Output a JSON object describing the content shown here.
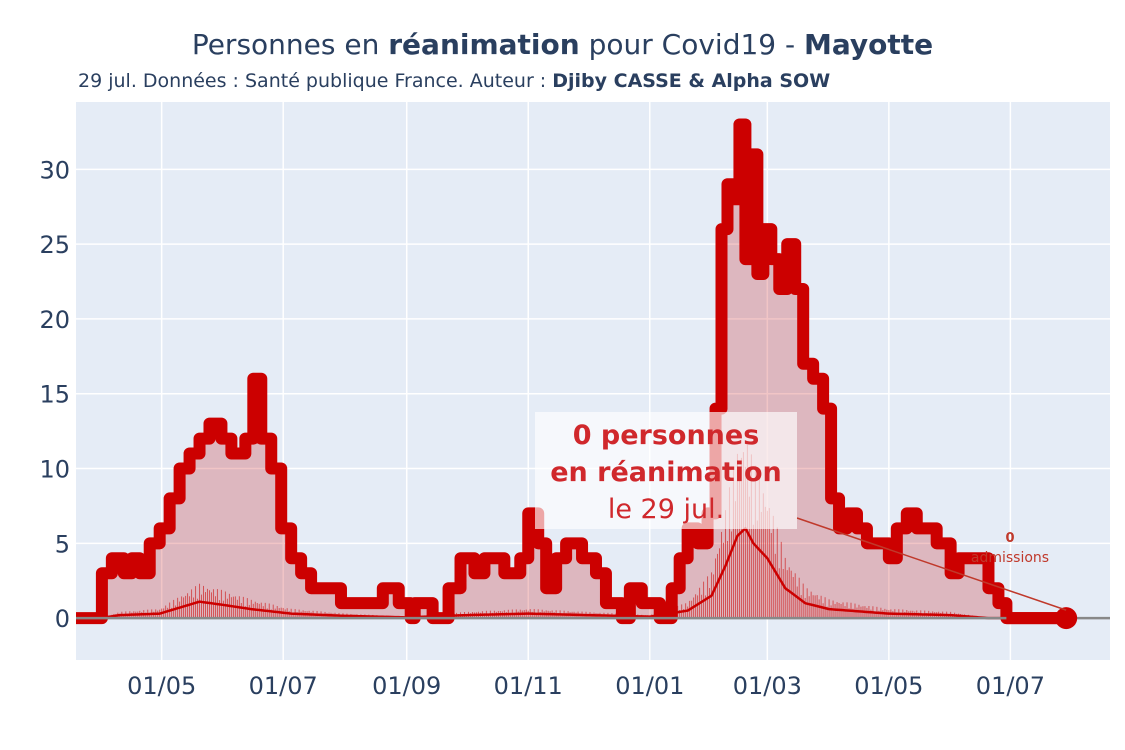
{
  "title": {
    "prefix": "Personnes en ",
    "bold1": "réanimation",
    "middle": " pour Covid19 - ",
    "bold2": "Mayotte"
  },
  "subtitle": {
    "text": "29 jul. Données : Santé publique France. Auteur : ",
    "author": "Djiby CASSE & Alpha SOW"
  },
  "annotation": {
    "line1": "0 personnes",
    "line2": "en réanimation",
    "line3": "le 29 jul.",
    "admissions_value": "0",
    "admissions_label": "admissions"
  },
  "colors": {
    "main_line": "#cc0000",
    "fill": "rgba(201,25,28,0.25)",
    "plot_bg": "#e5ecf6",
    "grid": "#ffffff",
    "zero_line": "#888888",
    "annotation_text": "#d0282c"
  },
  "chart_data": {
    "type": "area",
    "x_start": "2020-03-19",
    "x_end": "2021-07-29",
    "x_range": [
      "2020-03-19",
      "2021-08-20"
    ],
    "ylim": [
      -2.8,
      34.5
    ],
    "yticks": [
      0,
      5,
      10,
      15,
      20,
      25,
      30
    ],
    "xtick_labels": [
      "01/05",
      "01/07",
      "01/09",
      "01/11",
      "01/01",
      "01/03",
      "01/05",
      "01/07"
    ],
    "xtick_dates": [
      "2020-05-01",
      "2020-07-01",
      "2020-09-01",
      "2020-11-01",
      "2021-01-01",
      "2021-03-01",
      "2021-05-01",
      "2021-07-01"
    ],
    "grid": true,
    "series": [
      {
        "role": "reanimation",
        "keypoints": [
          [
            "2020-03-19",
            0
          ],
          [
            "2020-03-31",
            0
          ],
          [
            "2020-04-01",
            3
          ],
          [
            "2020-04-05",
            3
          ],
          [
            "2020-04-06",
            4
          ],
          [
            "2020-04-12",
            3
          ],
          [
            "2020-04-16",
            4
          ],
          [
            "2020-04-20",
            3
          ],
          [
            "2020-04-25",
            5
          ],
          [
            "2020-04-30",
            6
          ],
          [
            "2020-05-05",
            8
          ],
          [
            "2020-05-10",
            10
          ],
          [
            "2020-05-15",
            11
          ],
          [
            "2020-05-20",
            12
          ],
          [
            "2020-05-25",
            13
          ],
          [
            "2020-05-31",
            12
          ],
          [
            "2020-06-05",
            11
          ],
          [
            "2020-06-12",
            12
          ],
          [
            "2020-06-16",
            16
          ],
          [
            "2020-06-20",
            12
          ],
          [
            "2020-06-25",
            10
          ],
          [
            "2020-06-30",
            6
          ],
          [
            "2020-07-05",
            4
          ],
          [
            "2020-07-10",
            3
          ],
          [
            "2020-07-15",
            2
          ],
          [
            "2020-07-25",
            2
          ],
          [
            "2020-07-30",
            1
          ],
          [
            "2020-08-10",
            1
          ],
          [
            "2020-08-20",
            2
          ],
          [
            "2020-08-28",
            1
          ],
          [
            "2020-09-03",
            0
          ],
          [
            "2020-09-05",
            1
          ],
          [
            "2020-09-10",
            1
          ],
          [
            "2020-09-14",
            0
          ],
          [
            "2020-09-20",
            0
          ],
          [
            "2020-09-22",
            2
          ],
          [
            "2020-09-28",
            4
          ],
          [
            "2020-10-05",
            3
          ],
          [
            "2020-10-10",
            4
          ],
          [
            "2020-10-20",
            3
          ],
          [
            "2020-10-28",
            4
          ],
          [
            "2020-11-01",
            7
          ],
          [
            "2020-11-06",
            5
          ],
          [
            "2020-11-10",
            2
          ],
          [
            "2020-11-15",
            4
          ],
          [
            "2020-11-20",
            5
          ],
          [
            "2020-11-28",
            4
          ],
          [
            "2020-12-05",
            3
          ],
          [
            "2020-12-10",
            1
          ],
          [
            "2020-12-18",
            0
          ],
          [
            "2020-12-22",
            2
          ],
          [
            "2020-12-28",
            1
          ],
          [
            "2021-01-03",
            1
          ],
          [
            "2021-01-06",
            0
          ],
          [
            "2021-01-09",
            0
          ],
          [
            "2021-01-12",
            2
          ],
          [
            "2021-01-16",
            4
          ],
          [
            "2021-01-20",
            6
          ],
          [
            "2021-01-25",
            5
          ],
          [
            "2021-01-30",
            7
          ],
          [
            "2021-02-03",
            14
          ],
          [
            "2021-02-06",
            26
          ],
          [
            "2021-02-09",
            29
          ],
          [
            "2021-02-12",
            28
          ],
          [
            "2021-02-15",
            33
          ],
          [
            "2021-02-18",
            24
          ],
          [
            "2021-02-21",
            31
          ],
          [
            "2021-02-24",
            23
          ],
          [
            "2021-02-27",
            26
          ],
          [
            "2021-03-03",
            24
          ],
          [
            "2021-03-07",
            22
          ],
          [
            "2021-03-11",
            25
          ],
          [
            "2021-03-15",
            22
          ],
          [
            "2021-03-19",
            17
          ],
          [
            "2021-03-24",
            16
          ],
          [
            "2021-03-29",
            14
          ],
          [
            "2021-04-02",
            8
          ],
          [
            "2021-04-06",
            6
          ],
          [
            "2021-04-10",
            7
          ],
          [
            "2021-04-15",
            6
          ],
          [
            "2021-04-20",
            5
          ],
          [
            "2021-04-25",
            5
          ],
          [
            "2021-05-01",
            4
          ],
          [
            "2021-05-05",
            6
          ],
          [
            "2021-05-10",
            7
          ],
          [
            "2021-05-15",
            6
          ],
          [
            "2021-05-25",
            5
          ],
          [
            "2021-06-01",
            3
          ],
          [
            "2021-06-05",
            4
          ],
          [
            "2021-06-15",
            4
          ],
          [
            "2021-06-20",
            2
          ],
          [
            "2021-06-25",
            1
          ],
          [
            "2021-06-29",
            0
          ],
          [
            "2021-07-29",
            0
          ]
        ]
      },
      {
        "role": "admissions_7day_average",
        "keypoints": [
          [
            "2020-03-19",
            0
          ],
          [
            "2020-03-31",
            0
          ],
          [
            "2020-04-10",
            0.2
          ],
          [
            "2020-04-30",
            0.3
          ],
          [
            "2020-05-10",
            0.7
          ],
          [
            "2020-05-20",
            1.1
          ],
          [
            "2020-05-31",
            0.9
          ],
          [
            "2020-06-15",
            0.6
          ],
          [
            "2020-07-05",
            0.3
          ],
          [
            "2020-08-01",
            0.15
          ],
          [
            "2020-09-01",
            0.05
          ],
          [
            "2020-10-01",
            0.2
          ],
          [
            "2020-11-01",
            0.3
          ],
          [
            "2020-12-01",
            0.2
          ],
          [
            "2021-01-01",
            0.1
          ],
          [
            "2021-01-20",
            0.5
          ],
          [
            "2021-02-01",
            1.5
          ],
          [
            "2021-02-08",
            3.5
          ],
          [
            "2021-02-14",
            5.5
          ],
          [
            "2021-02-18",
            6
          ],
          [
            "2021-02-22",
            5
          ],
          [
            "2021-03-01",
            4
          ],
          [
            "2021-03-10",
            2
          ],
          [
            "2021-03-20",
            1
          ],
          [
            "2021-04-01",
            0.6
          ],
          [
            "2021-05-01",
            0.3
          ],
          [
            "2021-06-01",
            0.2
          ],
          [
            "2021-06-20",
            0
          ],
          [
            "2021-07-29",
            0
          ]
        ]
      }
    ]
  }
}
